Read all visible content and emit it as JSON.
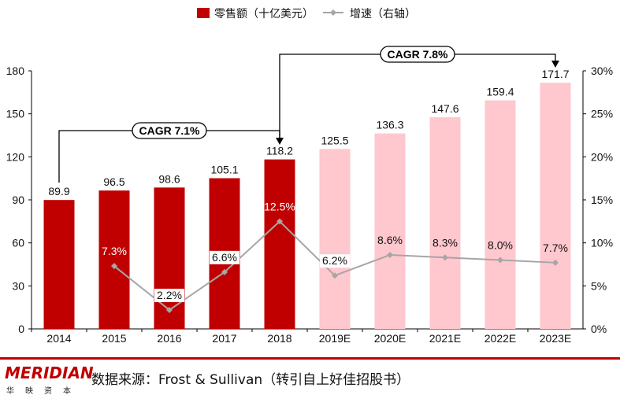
{
  "chart_data": {
    "type": "bar",
    "categories": [
      "2014",
      "2015",
      "2016",
      "2017",
      "2018",
      "2019E",
      "2020E",
      "2021E",
      "2022E",
      "2023E"
    ],
    "series": [
      {
        "name": "零售额（十亿美元）",
        "type": "bar",
        "axis": "left",
        "values": [
          89.9,
          96.5,
          98.6,
          105.1,
          118.2,
          125.5,
          136.3,
          147.6,
          159.4,
          171.7
        ],
        "labels": [
          "89.9",
          "96.5",
          "98.6",
          "105.1",
          "118.2",
          "125.5",
          "136.3",
          "147.6",
          "159.4",
          "171.7"
        ]
      },
      {
        "name": "增速（右轴）",
        "type": "line",
        "axis": "right",
        "values": [
          null,
          7.3,
          2.2,
          6.6,
          12.5,
          6.2,
          8.6,
          8.3,
          8.0,
          7.7
        ],
        "labels": [
          "",
          "7.3%",
          "2.2%",
          "6.6%",
          "12.5%",
          "6.2%",
          "8.6%",
          "8.3%",
          "8.0%",
          "7.7%"
        ]
      }
    ],
    "y_left": {
      "min": 0,
      "max": 180,
      "ticks": [
        "0",
        "30",
        "60",
        "90",
        "120",
        "150",
        "180"
      ]
    },
    "y_right": {
      "min": 0,
      "max": 30,
      "ticks": [
        "0%",
        "5%",
        "10%",
        "15%",
        "20%",
        "25%",
        "30%"
      ]
    },
    "colors": {
      "actual_bar": "#c00000",
      "forecast_bar": "#ffc7ce",
      "line": "#a6a6a6",
      "label_on_dark": "#ffffff",
      "label_default": "#111111"
    },
    "forecast_start_index": 5,
    "annotations": [
      {
        "text": "CAGR 7.1%",
        "from": "2014",
        "to": "2018"
      },
      {
        "text": "CAGR 7.8%",
        "from": "2018",
        "to": "2023E"
      }
    ],
    "legend": {
      "position": "top-center",
      "items": [
        "零售额（十亿美元）",
        "增速（右轴）"
      ]
    }
  },
  "footer": {
    "logo_text": "MERIDIAN",
    "logo_sub": "华映资本",
    "source": "数据来源：Frost & Sullivan（转引自上好佳招股书）"
  }
}
